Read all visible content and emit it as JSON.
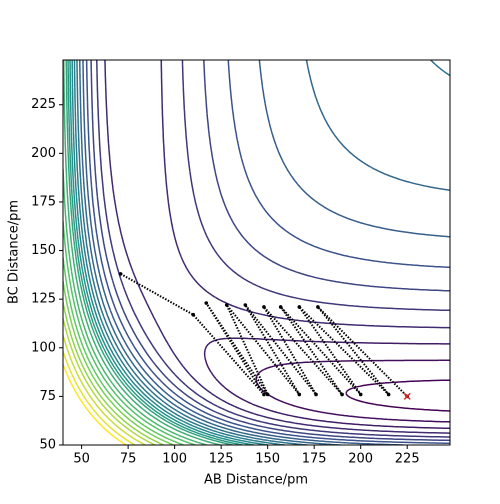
{
  "chart_data": {
    "type": "contour",
    "xlabel": "AB Distance/pm",
    "ylabel": "BC Distance/pm",
    "xlim": [
      40,
      248
    ],
    "ylim": [
      50,
      248
    ],
    "xticks": [
      50,
      75,
      100,
      125,
      150,
      175,
      200,
      225
    ],
    "yticks": [
      50,
      75,
      100,
      125,
      150,
      175,
      200,
      225
    ],
    "surface": {
      "r0": 74,
      "a": 0.025,
      "D1": 0.75,
      "D2": 1.0,
      "K": 2.5
    },
    "levels": [
      -0.95,
      -0.85,
      -0.75,
      -0.65,
      -0.55,
      -0.45,
      -0.35,
      -0.25,
      -0.15,
      -0.05,
      0.05,
      0.15,
      0.25,
      0.35,
      0.45,
      0.6,
      0.8,
      1.0,
      1.25,
      1.5,
      1.8,
      2.1,
      2.5,
      3.0,
      3.5
    ],
    "colormap": [
      "#440154",
      "#3b528b",
      "#21918c",
      "#5ec962",
      "#fde725"
    ],
    "trajectory": {
      "color": "#000000",
      "x": [
        71,
        110,
        148,
        117,
        150,
        128,
        167,
        138,
        176,
        148,
        190,
        157,
        200,
        167,
        215,
        177,
        225
      ],
      "y": [
        138,
        117,
        76,
        123,
        76,
        122,
        76,
        122,
        76,
        121,
        76,
        121,
        76,
        121,
        76,
        121,
        75
      ]
    },
    "end_marker_color": "#d62728"
  }
}
